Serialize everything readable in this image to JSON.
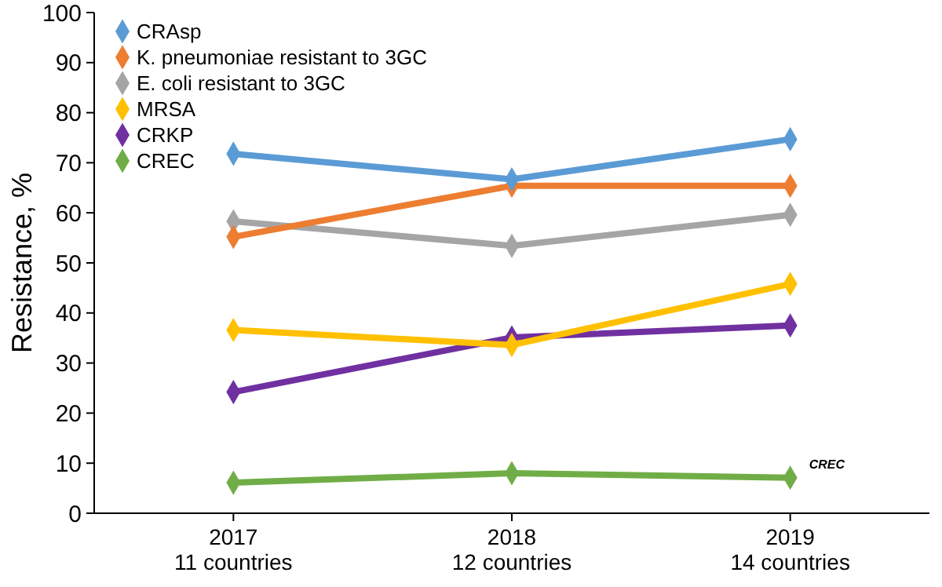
{
  "chart_data": {
    "type": "line",
    "ylabel": "Resistance, %",
    "categories": [
      "2017\n11 countries",
      "2018\n12 countries",
      "2019\n14 countries"
    ],
    "series": [
      {
        "name": "CRAsp",
        "color": "#5b9bd5",
        "values": [
          71.8,
          66.7,
          74.7
        ]
      },
      {
        "name": "K. pneumoniae resistant to 3GC",
        "color": "#ed7d31",
        "values": [
          55.2,
          65.4,
          65.4
        ]
      },
      {
        "name": "E. coli resistant to 3GC",
        "color": "#a5a5a5",
        "values": [
          58.3,
          53.4,
          59.6
        ]
      },
      {
        "name": "MRSA",
        "color": "#ffc000",
        "values": [
          36.6,
          33.6,
          45.8
        ]
      },
      {
        "name": "CRKP",
        "color": "#7030a0",
        "values": [
          24.2,
          35.1,
          37.5
        ]
      },
      {
        "name": "CREC",
        "color": "#70ad47",
        "values": [
          6.1,
          8.0,
          7.1
        ]
      }
    ],
    "ylim": [
      0,
      100
    ],
    "yticks": [
      0,
      10,
      20,
      30,
      40,
      50,
      60,
      70,
      80,
      90,
      100
    ],
    "grid": false,
    "legend": "top left",
    "marker": "diamond",
    "line_style": "solid",
    "annotations": [
      {
        "text": "CREC",
        "x": "2019\n14 countries",
        "y": 7.1
      }
    ]
  }
}
